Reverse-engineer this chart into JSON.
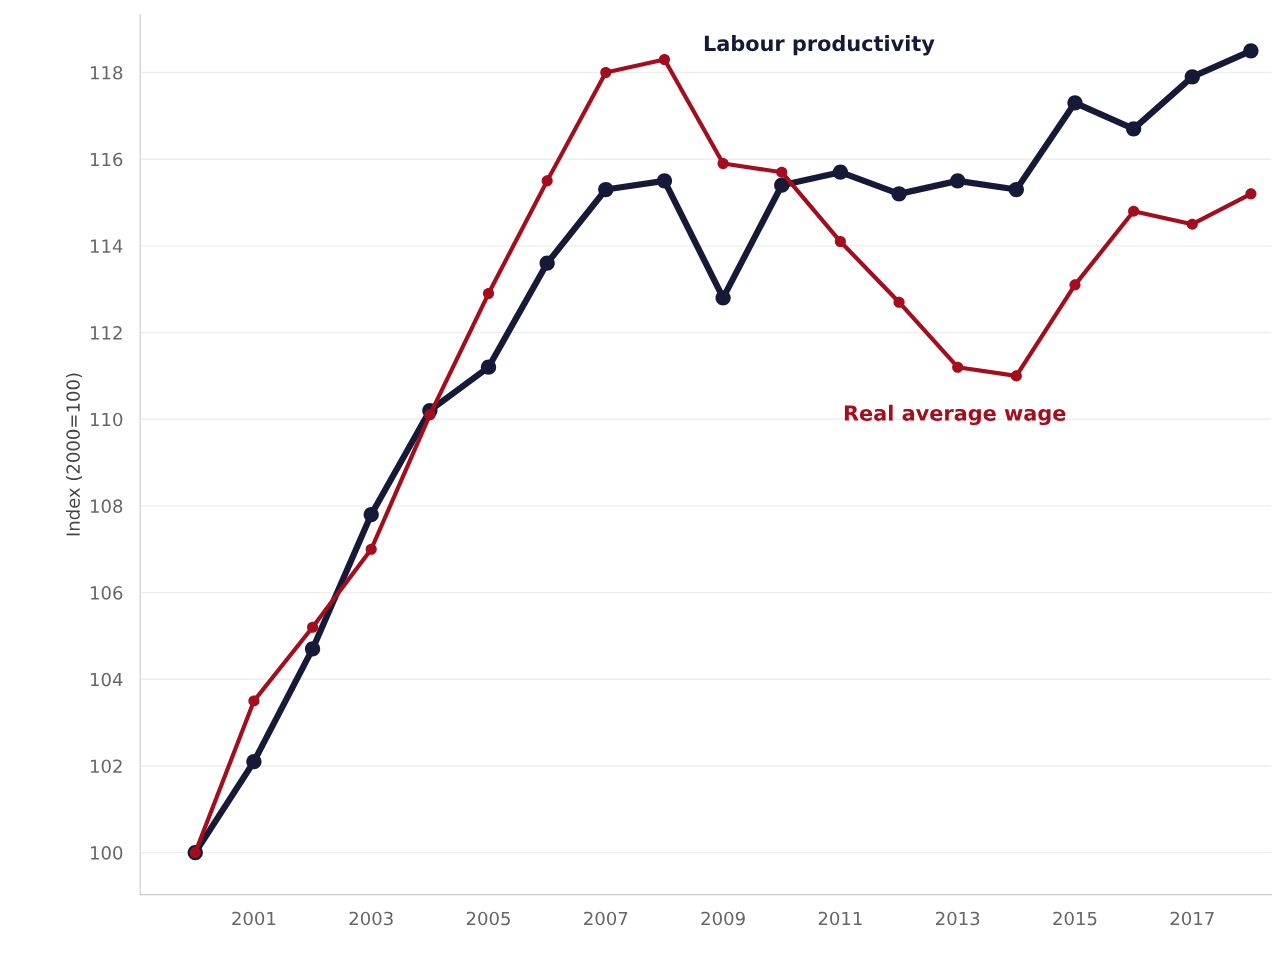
{
  "chart_data": {
    "type": "line",
    "ylabel": "Index (2000=100)",
    "x": [
      2000,
      2001,
      2002,
      2003,
      2004,
      2005,
      2006,
      2007,
      2008,
      2009,
      2010,
      2011,
      2012,
      2013,
      2014,
      2015,
      2016,
      2017,
      2018
    ],
    "series": [
      {
        "name": "Labour productivity",
        "color": "#161a38",
        "values": [
          100,
          102.1,
          104.7,
          107.8,
          110.2,
          111.2,
          113.6,
          115.3,
          115.5,
          112.8,
          115.4,
          115.7,
          115.2,
          115.5,
          115.3,
          117.3,
          116.7,
          117.9,
          118.5
        ]
      },
      {
        "name": "Real average wage",
        "color": "#a30d1c",
        "values": [
          100,
          103.5,
          105.2,
          107.0,
          110.1,
          112.9,
          115.5,
          118.0,
          118.3,
          115.9,
          115.7,
          114.1,
          112.7,
          111.2,
          111.0,
          113.1,
          114.8,
          114.5,
          115.2
        ]
      }
    ],
    "xlim": [
      1999.06,
      2018.35
    ],
    "ylim": [
      99.03,
      119.34
    ],
    "xticks": [
      2001,
      2003,
      2005,
      2007,
      2009,
      2011,
      2013,
      2015,
      2017
    ],
    "yticks": [
      100,
      102,
      104,
      106,
      108,
      110,
      112,
      114,
      116,
      118
    ],
    "grid": "y",
    "marker": "circle",
    "line_style": "solid",
    "legend": false
  }
}
